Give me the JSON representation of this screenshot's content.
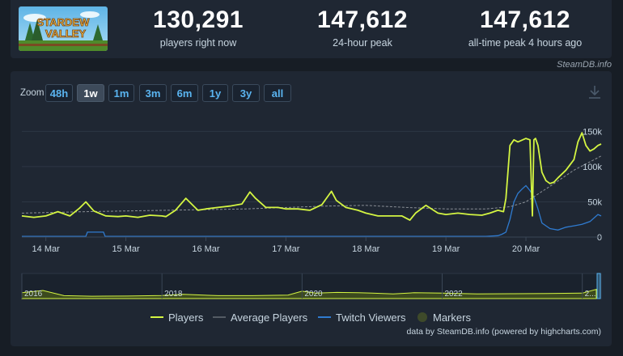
{
  "stats": [
    {
      "value": "130,291",
      "label": "players right now"
    },
    {
      "value": "147,612",
      "label": "24-hour peak"
    },
    {
      "value": "147,612",
      "label": "all-time peak 4 hours ago"
    }
  ],
  "logo": {
    "line1": "STARDEW",
    "line2": "VALLEY"
  },
  "watermark": "SteamDB.info",
  "zoom": {
    "label": "Zoom",
    "buttons": [
      "48h",
      "1w",
      "1m",
      "3m",
      "6m",
      "1y",
      "3y",
      "all"
    ],
    "active": "1w"
  },
  "colors": {
    "players": "#d4f542",
    "average": "#8a8f96",
    "twitch": "#2f7bd0",
    "markers": "#3e4a2a",
    "grid": "#2c3644"
  },
  "legend": [
    "Players",
    "Average Players",
    "Twitch Viewers",
    "Markers"
  ],
  "credits": "data by SteamDB.info (powered by highcharts.com)",
  "chart_data": {
    "type": "line",
    "title": "",
    "x_tick_labels": [
      "14 Mar",
      "15 Mar",
      "16 Mar",
      "17 Mar",
      "18 Mar",
      "19 Mar",
      "20 Mar"
    ],
    "x_range": [
      13.7,
      20.94
    ],
    "y_tick_labels": [
      "0",
      "50k",
      "100k",
      "150k"
    ],
    "y_ticks": [
      0,
      50000,
      100000,
      150000
    ],
    "ylim": [
      0,
      155000
    ],
    "grid": true,
    "legend_position": "bottom",
    "series": [
      {
        "name": "Players",
        "x": [
          13.7,
          13.85,
          14.0,
          14.15,
          14.3,
          14.42,
          14.5,
          14.6,
          14.75,
          14.9,
          15.0,
          15.15,
          15.3,
          15.45,
          15.5,
          15.62,
          15.75,
          15.9,
          16.0,
          16.15,
          16.3,
          16.45,
          16.55,
          16.62,
          16.75,
          16.9,
          17.0,
          17.15,
          17.3,
          17.45,
          17.57,
          17.63,
          17.75,
          17.9,
          18.0,
          18.15,
          18.3,
          18.45,
          18.55,
          18.62,
          18.75,
          18.9,
          19.0,
          19.15,
          19.3,
          19.45,
          19.55,
          19.65,
          19.72,
          19.75,
          19.8,
          19.85,
          19.9,
          20.0,
          20.05,
          20.08,
          20.1,
          20.12,
          20.15,
          20.2,
          20.25,
          20.3,
          20.35,
          20.4,
          20.5,
          20.6,
          20.65,
          20.7,
          20.75,
          20.8,
          20.85,
          20.9,
          20.94
        ],
        "y": [
          30000,
          28000,
          30000,
          36000,
          30000,
          41000,
          50000,
          37000,
          30000,
          29000,
          30000,
          28000,
          31000,
          30000,
          29000,
          38000,
          55000,
          38000,
          40000,
          42000,
          44000,
          47000,
          64000,
          55000,
          42000,
          42000,
          40000,
          40000,
          38000,
          46000,
          65000,
          52000,
          42000,
          38000,
          34000,
          30000,
          30000,
          30000,
          24000,
          34000,
          45000,
          34000,
          32000,
          34000,
          32000,
          31000,
          34000,
          38000,
          36000,
          55000,
          130000,
          138000,
          135000,
          140000,
          138000,
          30000,
          138000,
          140000,
          130000,
          92000,
          80000,
          76000,
          78000,
          84000,
          95000,
          110000,
          135000,
          148000,
          130000,
          122000,
          125000,
          130000,
          132000
        ]
      },
      {
        "name": "Average Players",
        "x": [
          13.7,
          14.5,
          15.5,
          16.5,
          17.5,
          18.0,
          18.5,
          19.0,
          19.5,
          19.8,
          20.0,
          20.3,
          20.6,
          20.94
        ],
        "y": [
          34000,
          36000,
          38000,
          40000,
          44000,
          45000,
          42000,
          40000,
          40000,
          43000,
          50000,
          72000,
          95000,
          115000
        ]
      },
      {
        "name": "Twitch Viewers",
        "x": [
          13.7,
          14.4,
          14.5,
          14.52,
          14.72,
          14.74,
          15.0,
          16.0,
          17.0,
          18.0,
          19.0,
          19.5,
          19.65,
          19.7,
          19.75,
          19.8,
          19.85,
          19.9,
          19.95,
          20.0,
          20.05,
          20.1,
          20.15,
          20.2,
          20.3,
          20.4,
          20.5,
          20.6,
          20.7,
          20.8,
          20.9,
          20.94
        ],
        "y": [
          1000,
          1000,
          1000,
          7000,
          7000,
          1000,
          1000,
          1000,
          1000,
          1000,
          1000,
          1000,
          2000,
          4000,
          7000,
          25000,
          50000,
          62000,
          68000,
          73000,
          66000,
          57000,
          40000,
          20000,
          12000,
          10000,
          14000,
          16000,
          18000,
          22000,
          32000,
          30000
        ]
      }
    ]
  },
  "navigator_data": {
    "type": "area",
    "x_tick_labels": [
      "2016",
      "2018",
      "2020",
      "2022",
      "2..."
    ],
    "x": [
      2016.0,
      2016.3,
      2016.6,
      2017.0,
      2017.5,
      2018.0,
      2018.3,
      2018.8,
      2019.3,
      2019.8,
      2020.0,
      2020.2,
      2020.5,
      2020.8,
      2021.0,
      2021.3,
      2021.6,
      2022.0,
      2022.5,
      2023.0,
      2023.5,
      2024.0,
      2024.2
    ],
    "y": [
      30000,
      42000,
      15000,
      12000,
      13000,
      16000,
      22000,
      15000,
      15000,
      18000,
      38000,
      28000,
      32000,
      30000,
      28000,
      24000,
      30000,
      28000,
      24000,
      25000,
      26000,
      28000,
      48000
    ],
    "ylim": [
      0,
      130000
    ]
  }
}
